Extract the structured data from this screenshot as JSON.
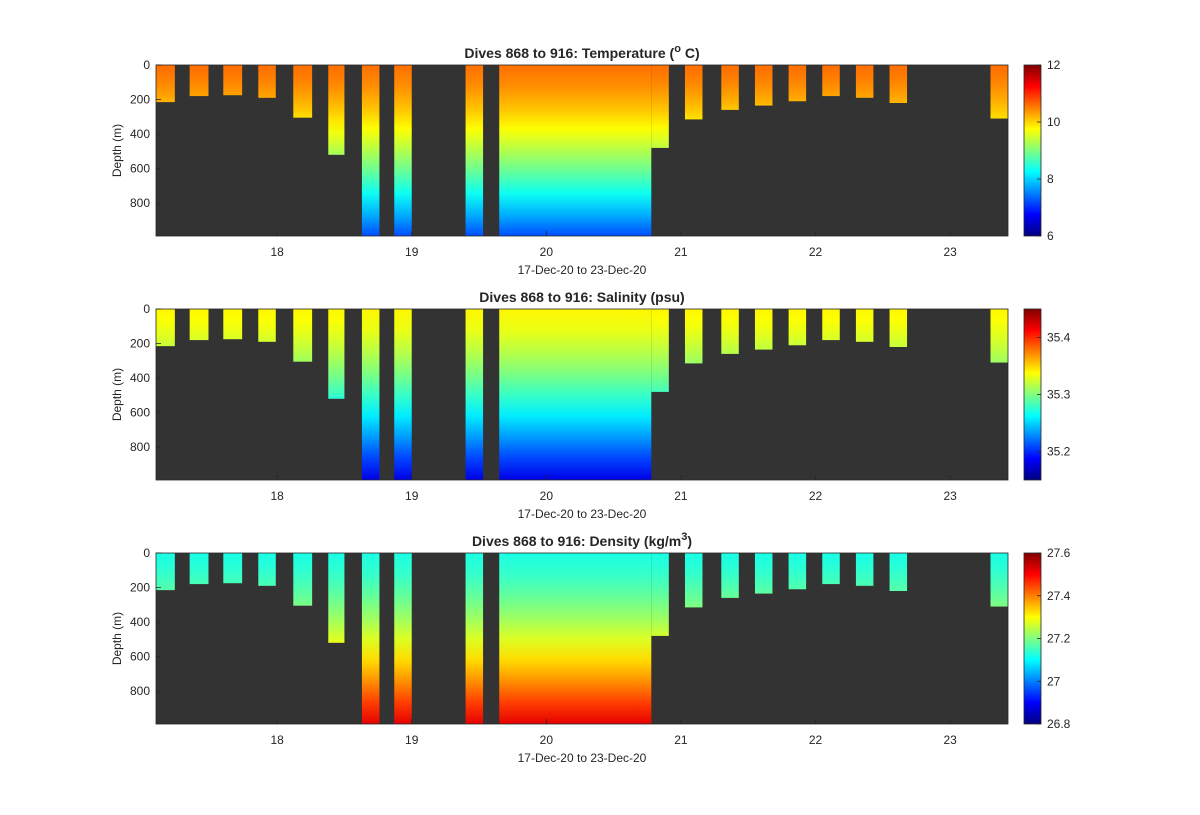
{
  "chart_data": [
    {
      "type": "heatmap",
      "title_main": "Dives 868 to 916: Temperature (",
      "title_sup": "o",
      "title_tail": " C)",
      "xlabel": "17-Dec-20 to 23-Dec-20",
      "ylabel": "Depth (m)",
      "xlim": [
        17.1,
        23.43
      ],
      "ylim": [
        0,
        990
      ],
      "y_reversed": true,
      "xticks": [
        "18",
        "19",
        "20",
        "21",
        "22",
        "23"
      ],
      "yticks": [
        "0",
        "200",
        "400",
        "600",
        "800"
      ],
      "colorbar": {
        "colormap": "jet",
        "range": [
          6,
          12
        ],
        "ticks": [
          "6",
          "8",
          "10",
          "12"
        ]
      },
      "surface_value": 10.6,
      "deep_value": 7.2,
      "background": "#333333"
    },
    {
      "type": "heatmap",
      "title_main": "Dives 868 to 916: Salinity (psu)",
      "title_sup": "",
      "title_tail": "",
      "xlabel": "17-Dec-20 to 23-Dec-20",
      "ylabel": "Depth (m)",
      "xlim": [
        17.1,
        23.43
      ],
      "ylim": [
        0,
        990
      ],
      "y_reversed": true,
      "xticks": [
        "18",
        "19",
        "20",
        "21",
        "22",
        "23"
      ],
      "yticks": [
        "0",
        "200",
        "400",
        "600",
        "800"
      ],
      "colorbar": {
        "colormap": "jet",
        "range": [
          35.15,
          35.45
        ],
        "ticks": [
          "35.2",
          "35.3",
          "35.4"
        ]
      },
      "surface_value": 35.34,
      "deep_value": 35.18,
      "background": "#333333"
    },
    {
      "type": "heatmap",
      "title_main": "Dives 868 to 916: Density (kg/m",
      "title_sup": "3",
      "title_tail": ")",
      "xlabel": "17-Dec-20 to 23-Dec-20",
      "ylabel": "Depth (m)",
      "xlim": [
        17.1,
        23.43
      ],
      "ylim": [
        0,
        990
      ],
      "y_reversed": true,
      "xticks": [
        "18",
        "19",
        "20",
        "21",
        "22",
        "23"
      ],
      "yticks": [
        "0",
        "200",
        "400",
        "600",
        "800"
      ],
      "colorbar": {
        "colormap": "jet",
        "range": [
          26.8,
          27.6
        ],
        "ticks": [
          "26.8",
          "27",
          "27.2",
          "27.4",
          "27.6"
        ]
      },
      "surface_value": 27.12,
      "deep_value": 27.52,
      "background": "#333333"
    }
  ],
  "profiles": [
    {
      "start": 17.1,
      "end": 17.24,
      "max_depth": 215
    },
    {
      "start": 17.35,
      "end": 17.49,
      "max_depth": 180
    },
    {
      "start": 17.6,
      "end": 17.74,
      "max_depth": 175
    },
    {
      "start": 17.86,
      "end": 17.99,
      "max_depth": 190
    },
    {
      "start": 18.12,
      "end": 18.26,
      "max_depth": 305
    },
    {
      "start": 18.38,
      "end": 18.5,
      "max_depth": 520
    },
    {
      "start": 18.63,
      "end": 18.76,
      "max_depth": 990
    },
    {
      "start": 18.87,
      "end": 19.0,
      "max_depth": 990
    },
    {
      "start": 19.4,
      "end": 19.53,
      "max_depth": 990
    },
    {
      "start": 19.65,
      "end": 20.78,
      "max_depth": 990
    },
    {
      "start": 20.78,
      "end": 20.91,
      "max_depth": 480
    },
    {
      "start": 21.03,
      "end": 21.16,
      "max_depth": 315
    },
    {
      "start": 21.3,
      "end": 21.43,
      "max_depth": 260
    },
    {
      "start": 21.55,
      "end": 21.68,
      "max_depth": 235
    },
    {
      "start": 21.8,
      "end": 21.93,
      "max_depth": 210
    },
    {
      "start": 22.05,
      "end": 22.18,
      "max_depth": 180
    },
    {
      "start": 22.3,
      "end": 22.43,
      "max_depth": 190
    },
    {
      "start": 22.55,
      "end": 22.68,
      "max_depth": 220
    },
    {
      "start": 22.8,
      "end": 22.93,
      "max_depth": 0
    },
    {
      "start": 23.3,
      "end": 23.43,
      "max_depth": 310
    }
  ]
}
